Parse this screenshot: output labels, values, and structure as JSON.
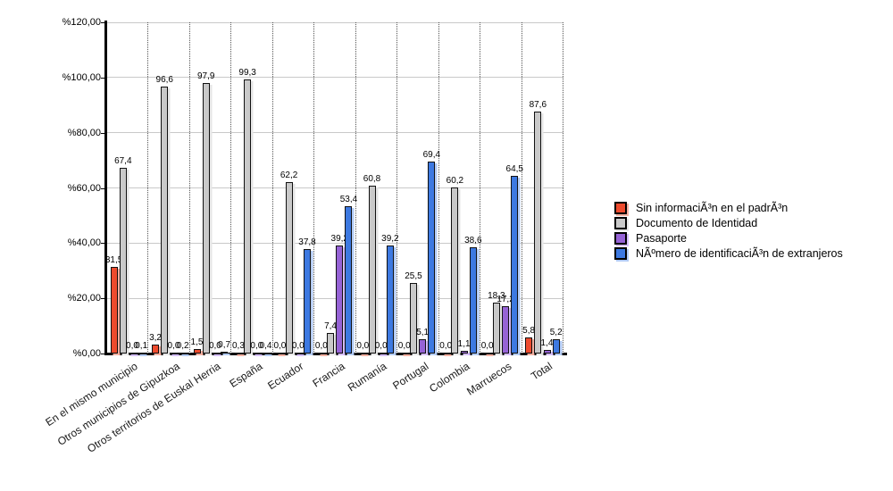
{
  "chart_data": {
    "type": "bar",
    "title": "",
    "xlabel": "",
    "ylabel": "",
    "ylim": [
      0,
      120
    ],
    "grid": true,
    "legend_position": "right",
    "decimal_separator": ",",
    "y_ticks": [
      "%120,00",
      "%100,00",
      "%80,00",
      "%60,00",
      "%40,00",
      "%20,00",
      "%0,00"
    ],
    "categories": [
      "En el mismo municipio",
      "Otros municipios de Gipuzkoa",
      "Otros territorios de Euskal Herria",
      "España",
      "Ecuador",
      "Francia",
      "Rumanía",
      "Portugal",
      "Colombia",
      "Marruecos",
      "Total"
    ],
    "series": [
      {
        "name": "Sin informaciÃ³n en el padrÃ³n",
        "color": "#ee4b2e",
        "shadow": "#f5b1a2",
        "values": [
          31.5,
          3.2,
          1.5,
          0.3,
          0.0,
          0.0,
          0.0,
          0.0,
          0.0,
          0.0,
          5.8
        ]
      },
      {
        "name": "Documento de Identidad",
        "color": "#c9c9c9",
        "shadow": "#e6e6e6",
        "values": [
          67.4,
          96.6,
          97.9,
          99.3,
          62.2,
          7.4,
          60.8,
          25.5,
          60.2,
          18.3,
          87.6
        ]
      },
      {
        "name": "Pasaporte",
        "color": "#9663d6",
        "shadow": "#d5befc",
        "values": [
          0.0,
          0.0,
          0.0,
          0.0,
          0.0,
          39.2,
          0.0,
          5.1,
          1.1,
          17.2,
          1.4
        ]
      },
      {
        "name": "NÃºmero de identificaciÃ³n de extranjeros",
        "color": "#3d79e1",
        "shadow": "#b3cbf4",
        "values": [
          0.1,
          0.2,
          0.7,
          0.4,
          37.8,
          53.4,
          39.2,
          69.4,
          38.6,
          64.5,
          5.2
        ]
      }
    ]
  }
}
